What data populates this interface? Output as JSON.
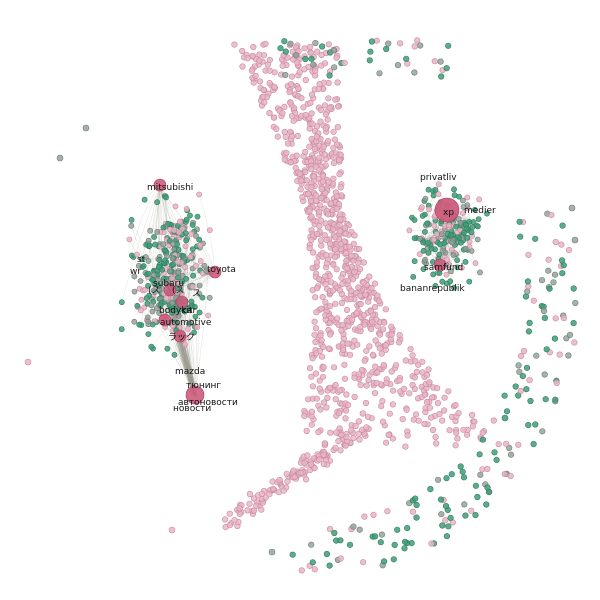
{
  "graph": {
    "colors": {
      "background": "#ffffff",
      "pink": "#e8b4c6",
      "pink_stroke": "#c98aa1",
      "green": "#3f9e78",
      "gray": "#8f9e96",
      "hub": "#cc5c7c",
      "edge": "#9a9a90"
    },
    "labels": [
      {
        "id": "mitsubishi",
        "text": "mitsubishi"
      },
      {
        "id": "st",
        "text": "st"
      },
      {
        "id": "wr",
        "text": "wr"
      },
      {
        "id": "toyota",
        "text": "toyota"
      },
      {
        "id": "subaru",
        "text": "subaru"
      },
      {
        "id": "cjk1",
        "text": "(ス"
      },
      {
        "id": "cjk2",
        "text": "(ス"
      },
      {
        "id": "cjk3",
        "text": "ス"
      },
      {
        "id": "bodykit",
        "text": "bodykit"
      },
      {
        "id": "car",
        "text": "car"
      },
      {
        "id": "automotive",
        "text": "automotive"
      },
      {
        "id": "cjk4",
        "text": "ラック"
      },
      {
        "id": "mazda",
        "text": "mazda"
      },
      {
        "id": "tuning",
        "text": "тюнинг"
      },
      {
        "id": "avtonovosti",
        "text": "автоновости"
      },
      {
        "id": "novosti",
        "text": "новости"
      },
      {
        "id": "privatliv",
        "text": "privatliv"
      },
      {
        "id": "xp",
        "text": "xp"
      },
      {
        "id": "medier",
        "text": "medier"
      },
      {
        "id": "samfund",
        "text": "samfund"
      },
      {
        "id": "bananrepublik",
        "text": "bananrepublik"
      }
    ]
  }
}
